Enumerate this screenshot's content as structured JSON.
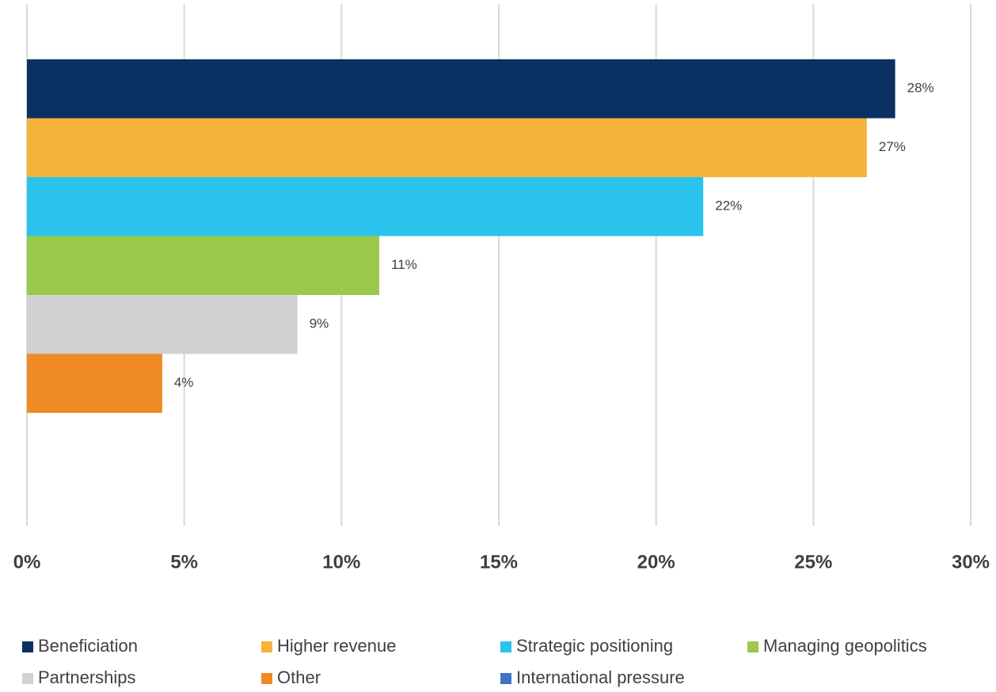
{
  "chart_data": {
    "type": "bar",
    "orientation": "horizontal",
    "categories": [
      null
    ],
    "series": [
      {
        "name": "Beneficiation",
        "color": "#0a3161",
        "values": [
          27.6
        ],
        "value_labels": [
          "28%"
        ]
      },
      {
        "name": "Higher revenue",
        "color": "#f6b33b",
        "values": [
          26.7
        ],
        "value_labels": [
          "27%"
        ]
      },
      {
        "name": "Strategic positioning",
        "color": "#2bc3ec",
        "values": [
          21.5
        ],
        "value_labels": [
          "22%"
        ]
      },
      {
        "name": "Managing geopolitics",
        "color": "#9ac84a",
        "values": [
          11.2
        ],
        "value_labels": [
          "11%"
        ]
      },
      {
        "name": "Partnerships",
        "color": "#d0d2d1",
        "values": [
          8.6
        ],
        "value_labels": [
          "9%"
        ]
      },
      {
        "name": "Other",
        "color": "#f08a22",
        "values": [
          4.3
        ],
        "value_labels": [
          "4%"
        ]
      },
      {
        "name": "International pressure",
        "color": "#4472c4",
        "values": [
          null
        ],
        "value_labels": [
          null
        ]
      }
    ],
    "xlim": [
      0,
      30
    ],
    "xticks": [
      {
        "value": 0,
        "label": "0%"
      },
      {
        "value": 5,
        "label": "5%"
      },
      {
        "value": 10,
        "label": "10%"
      },
      {
        "value": 15,
        "label": "15%"
      },
      {
        "value": 20,
        "label": "20%"
      },
      {
        "value": 25,
        "label": "25%"
      },
      {
        "value": 30,
        "label": "30%"
      }
    ],
    "grid": true,
    "legend": "bottom"
  }
}
